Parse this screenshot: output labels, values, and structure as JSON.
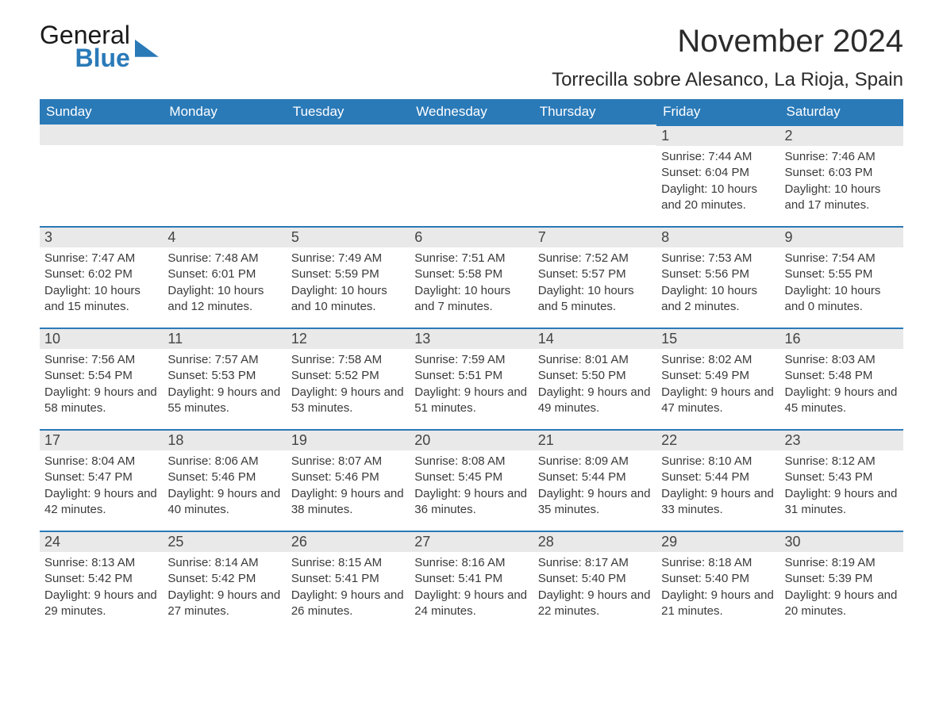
{
  "logo": {
    "line1": "General",
    "line2": "Blue"
  },
  "title": "November 2024",
  "location": "Torrecilla sobre Alesanco, La Rioja, Spain",
  "colors": {
    "header_bg": "#2a7ab8",
    "header_text": "#ffffff",
    "daynum_bg": "#e9e9e9",
    "daynum_border": "#2a7ab8",
    "body_text": "#3a3a3a",
    "page_bg": "#ffffff"
  },
  "day_headers": [
    "Sunday",
    "Monday",
    "Tuesday",
    "Wednesday",
    "Thursday",
    "Friday",
    "Saturday"
  ],
  "weeks": [
    [
      {
        "empty": true
      },
      {
        "empty": true
      },
      {
        "empty": true
      },
      {
        "empty": true
      },
      {
        "empty": true
      },
      {
        "n": "1",
        "sunrise": "7:44 AM",
        "sunset": "6:04 PM",
        "daylight": "10 hours and 20 minutes."
      },
      {
        "n": "2",
        "sunrise": "7:46 AM",
        "sunset": "6:03 PM",
        "daylight": "10 hours and 17 minutes."
      }
    ],
    [
      {
        "n": "3",
        "sunrise": "7:47 AM",
        "sunset": "6:02 PM",
        "daylight": "10 hours and 15 minutes."
      },
      {
        "n": "4",
        "sunrise": "7:48 AM",
        "sunset": "6:01 PM",
        "daylight": "10 hours and 12 minutes."
      },
      {
        "n": "5",
        "sunrise": "7:49 AM",
        "sunset": "5:59 PM",
        "daylight": "10 hours and 10 minutes."
      },
      {
        "n": "6",
        "sunrise": "7:51 AM",
        "sunset": "5:58 PM",
        "daylight": "10 hours and 7 minutes."
      },
      {
        "n": "7",
        "sunrise": "7:52 AM",
        "sunset": "5:57 PM",
        "daylight": "10 hours and 5 minutes."
      },
      {
        "n": "8",
        "sunrise": "7:53 AM",
        "sunset": "5:56 PM",
        "daylight": "10 hours and 2 minutes."
      },
      {
        "n": "9",
        "sunrise": "7:54 AM",
        "sunset": "5:55 PM",
        "daylight": "10 hours and 0 minutes."
      }
    ],
    [
      {
        "n": "10",
        "sunrise": "7:56 AM",
        "sunset": "5:54 PM",
        "daylight": "9 hours and 58 minutes."
      },
      {
        "n": "11",
        "sunrise": "7:57 AM",
        "sunset": "5:53 PM",
        "daylight": "9 hours and 55 minutes."
      },
      {
        "n": "12",
        "sunrise": "7:58 AM",
        "sunset": "5:52 PM",
        "daylight": "9 hours and 53 minutes."
      },
      {
        "n": "13",
        "sunrise": "7:59 AM",
        "sunset": "5:51 PM",
        "daylight": "9 hours and 51 minutes."
      },
      {
        "n": "14",
        "sunrise": "8:01 AM",
        "sunset": "5:50 PM",
        "daylight": "9 hours and 49 minutes."
      },
      {
        "n": "15",
        "sunrise": "8:02 AM",
        "sunset": "5:49 PM",
        "daylight": "9 hours and 47 minutes."
      },
      {
        "n": "16",
        "sunrise": "8:03 AM",
        "sunset": "5:48 PM",
        "daylight": "9 hours and 45 minutes."
      }
    ],
    [
      {
        "n": "17",
        "sunrise": "8:04 AM",
        "sunset": "5:47 PM",
        "daylight": "9 hours and 42 minutes."
      },
      {
        "n": "18",
        "sunrise": "8:06 AM",
        "sunset": "5:46 PM",
        "daylight": "9 hours and 40 minutes."
      },
      {
        "n": "19",
        "sunrise": "8:07 AM",
        "sunset": "5:46 PM",
        "daylight": "9 hours and 38 minutes."
      },
      {
        "n": "20",
        "sunrise": "8:08 AM",
        "sunset": "5:45 PM",
        "daylight": "9 hours and 36 minutes."
      },
      {
        "n": "21",
        "sunrise": "8:09 AM",
        "sunset": "5:44 PM",
        "daylight": "9 hours and 35 minutes."
      },
      {
        "n": "22",
        "sunrise": "8:10 AM",
        "sunset": "5:44 PM",
        "daylight": "9 hours and 33 minutes."
      },
      {
        "n": "23",
        "sunrise": "8:12 AM",
        "sunset": "5:43 PM",
        "daylight": "9 hours and 31 minutes."
      }
    ],
    [
      {
        "n": "24",
        "sunrise": "8:13 AM",
        "sunset": "5:42 PM",
        "daylight": "9 hours and 29 minutes."
      },
      {
        "n": "25",
        "sunrise": "8:14 AM",
        "sunset": "5:42 PM",
        "daylight": "9 hours and 27 minutes."
      },
      {
        "n": "26",
        "sunrise": "8:15 AM",
        "sunset": "5:41 PM",
        "daylight": "9 hours and 26 minutes."
      },
      {
        "n": "27",
        "sunrise": "8:16 AM",
        "sunset": "5:41 PM",
        "daylight": "9 hours and 24 minutes."
      },
      {
        "n": "28",
        "sunrise": "8:17 AM",
        "sunset": "5:40 PM",
        "daylight": "9 hours and 22 minutes."
      },
      {
        "n": "29",
        "sunrise": "8:18 AM",
        "sunset": "5:40 PM",
        "daylight": "9 hours and 21 minutes."
      },
      {
        "n": "30",
        "sunrise": "8:19 AM",
        "sunset": "5:39 PM",
        "daylight": "9 hours and 20 minutes."
      }
    ]
  ],
  "labels": {
    "sunrise": "Sunrise: ",
    "sunset": "Sunset: ",
    "daylight": "Daylight: "
  }
}
